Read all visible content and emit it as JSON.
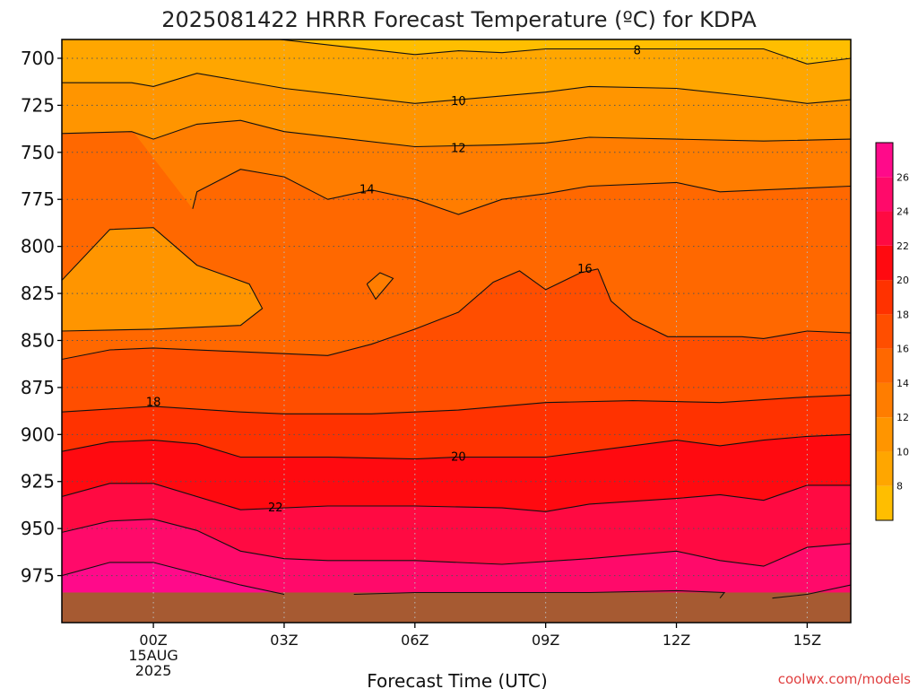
{
  "chart_data": {
    "type": "heatmap",
    "title": "2025081422 HRRR Forecast Temperature (ºC) for KDPA",
    "xlabel": "Forecast Time (UTC)",
    "ylabel": "",
    "watermark": "coolwx.com/models",
    "x_ticks": [
      {
        "hour": 0,
        "lines": [
          "00Z",
          "15AUG",
          "2025"
        ]
      },
      {
        "hour": 3,
        "lines": [
          "03Z"
        ]
      },
      {
        "hour": 6,
        "lines": [
          "06Z"
        ]
      },
      {
        "hour": 9,
        "lines": [
          "09Z"
        ]
      },
      {
        "hour": 12,
        "lines": [
          "12Z"
        ]
      },
      {
        "hour": 15,
        "lines": [
          "15Z"
        ]
      }
    ],
    "xlim_hours": [
      -2.1,
      16.0
    ],
    "y_axis": "pressure (hPa), inverted",
    "y_ticks": [
      700,
      725,
      750,
      775,
      800,
      825,
      850,
      875,
      900,
      925,
      950,
      975
    ],
    "ylim_hpa": [
      690,
      1000
    ],
    "colorbar": {
      "levels": [
        6,
        8,
        10,
        12,
        14,
        16,
        18,
        20,
        22,
        24,
        26,
        28
      ],
      "labels": [
        8,
        10,
        12,
        14,
        16,
        18,
        20,
        22,
        24,
        26
      ],
      "colors": [
        "#ffbe00",
        "#ffa600",
        "#ff9500",
        "#ff7d00",
        "#ff6800",
        "#ff4e00",
        "#ff3200",
        "#ff0a10",
        "#ff0a42",
        "#ff0a6a",
        "#ff0a8a"
      ]
    },
    "contours": [
      {
        "value": 8,
        "label": "8",
        "label_at": [
          11.1,
          696
        ],
        "points": [
          [
            2.9,
            690
          ],
          [
            6,
            698
          ],
          [
            7,
            696
          ],
          [
            8,
            697
          ],
          [
            9,
            695
          ],
          [
            12,
            695
          ],
          [
            14,
            695
          ],
          [
            15,
            703
          ],
          [
            16,
            700
          ]
        ]
      },
      {
        "value": 10,
        "label": "10",
        "label_at": [
          7,
          723
        ],
        "points": [
          [
            -2.1,
            713
          ],
          [
            -0.5,
            713
          ],
          [
            0,
            715
          ],
          [
            1,
            708
          ],
          [
            3,
            716
          ],
          [
            6,
            724
          ],
          [
            8,
            720
          ],
          [
            9,
            718
          ],
          [
            10,
            715
          ],
          [
            12,
            716
          ],
          [
            14,
            721
          ],
          [
            15,
            724
          ],
          [
            16,
            722
          ]
        ]
      },
      {
        "value": 12,
        "label": "12",
        "label_at": [
          7,
          748
        ],
        "points": [
          [
            -2.1,
            740
          ],
          [
            -0.5,
            739
          ],
          [
            0,
            743
          ],
          [
            1,
            735
          ],
          [
            2,
            733
          ],
          [
            3,
            739
          ],
          [
            6,
            747
          ],
          [
            8,
            746
          ],
          [
            9,
            745
          ],
          [
            10,
            742
          ],
          [
            12,
            743
          ],
          [
            14,
            744
          ],
          [
            16,
            743
          ]
        ]
      },
      {
        "value": 14,
        "label": "14",
        "label_at": [
          4.9,
          770
        ],
        "points": [
          [
            -2.1,
            818
          ],
          [
            -1,
            791
          ],
          [
            0,
            790
          ],
          [
            1,
            810
          ],
          [
            2.2,
            820
          ],
          [
            2.5,
            833
          ],
          [
            2,
            842
          ],
          [
            1,
            843
          ],
          [
            0,
            844
          ],
          [
            -2.1,
            845
          ]
        ]
      },
      {
        "value": 14,
        "label": "",
        "label_at": null,
        "points": [
          [
            0.9,
            780
          ],
          [
            1,
            771
          ],
          [
            2,
            759
          ],
          [
            3,
            763
          ],
          [
            4,
            775
          ],
          [
            5,
            770
          ],
          [
            6,
            775
          ],
          [
            7,
            783
          ],
          [
            8,
            775
          ],
          [
            9,
            772
          ],
          [
            10,
            768
          ],
          [
            12,
            766
          ],
          [
            13,
            771
          ],
          [
            14,
            770
          ],
          [
            16,
            768
          ]
        ]
      },
      {
        "value": 16,
        "label": "",
        "label_at": null,
        "points": [
          [
            -2.1,
            860
          ],
          [
            -1,
            855
          ],
          [
            0,
            854
          ],
          [
            2,
            856
          ],
          [
            3,
            857
          ],
          [
            4,
            858
          ],
          [
            5,
            852
          ],
          [
            6,
            844
          ],
          [
            7,
            835
          ],
          [
            7.8,
            819
          ],
          [
            8.4,
            813
          ],
          [
            9,
            823
          ],
          [
            9.8,
            814
          ],
          [
            10.2,
            812
          ]
        ]
      },
      {
        "value": 16,
        "label": "16",
        "label_at": [
          9.9,
          812
        ],
        "points": [
          [
            10.2,
            812
          ],
          [
            10.5,
            829
          ],
          [
            11,
            839
          ],
          [
            11.8,
            848
          ],
          [
            12.5,
            848
          ],
          [
            13.5,
            848
          ],
          [
            14,
            849
          ],
          [
            15,
            845
          ],
          [
            16,
            846
          ]
        ]
      },
      {
        "value": 16,
        "label": "",
        "label_at": null,
        "points": [
          [
            4.9,
            820
          ],
          [
            5.2,
            814
          ],
          [
            5.5,
            817
          ],
          [
            5.1,
            828
          ],
          [
            4.9,
            820
          ]
        ]
      },
      {
        "value": 18,
        "label": "18",
        "label_at": [
          0,
          883
        ],
        "points": [
          [
            -2.1,
            888
          ],
          [
            0,
            885
          ],
          [
            2,
            888
          ],
          [
            3,
            889
          ],
          [
            5,
            889
          ],
          [
            7,
            887
          ],
          [
            9,
            883
          ],
          [
            11,
            882
          ],
          [
            13,
            883
          ],
          [
            15,
            880
          ],
          [
            16,
            879
          ]
        ]
      },
      {
        "value": 20,
        "label": "20",
        "label_at": [
          7,
          912
        ],
        "points": [
          [
            -2.1,
            909
          ],
          [
            -1,
            904
          ],
          [
            0,
            903
          ],
          [
            1,
            905
          ],
          [
            2,
            912
          ],
          [
            4,
            912
          ],
          [
            6,
            913
          ],
          [
            7,
            912
          ],
          [
            9,
            912
          ],
          [
            12,
            903
          ],
          [
            13,
            906
          ],
          [
            14,
            903
          ],
          [
            15,
            901
          ],
          [
            16,
            900
          ]
        ]
      },
      {
        "value": 22,
        "label": "22",
        "label_at": [
          2.8,
          939
        ],
        "points": [
          [
            -2.1,
            933
          ],
          [
            -1,
            926
          ],
          [
            0,
            926
          ],
          [
            2,
            940
          ],
          [
            4,
            938
          ],
          [
            6,
            938
          ],
          [
            8,
            939
          ],
          [
            9,
            941
          ],
          [
            10,
            937
          ],
          [
            12,
            934
          ],
          [
            13,
            932
          ],
          [
            14,
            935
          ],
          [
            15,
            927
          ],
          [
            16,
            927
          ]
        ]
      },
      {
        "value": 24,
        "label": "",
        "label_at": null,
        "points": [
          [
            -2.1,
            952
          ],
          [
            -1,
            946
          ],
          [
            0,
            945
          ],
          [
            1,
            951
          ],
          [
            2,
            962
          ],
          [
            3,
            966
          ],
          [
            4,
            967
          ],
          [
            6,
            967
          ],
          [
            8,
            969
          ],
          [
            10,
            966
          ],
          [
            12,
            962
          ],
          [
            13,
            967
          ],
          [
            14,
            970
          ],
          [
            15,
            960
          ],
          [
            16,
            958
          ]
        ]
      },
      {
        "value": 26,
        "label": "",
        "label_at": null,
        "points": [
          [
            -2.1,
            975
          ],
          [
            -1,
            968
          ],
          [
            0,
            968
          ],
          [
            1,
            974
          ],
          [
            2,
            980
          ],
          [
            3,
            985
          ]
        ]
      },
      {
        "value": 26,
        "label": "",
        "label_at": null,
        "points": [
          [
            4.6,
            985
          ],
          [
            6,
            984
          ],
          [
            8,
            984
          ],
          [
            10,
            984
          ],
          [
            12,
            983
          ],
          [
            13.1,
            984
          ],
          [
            13,
            987
          ]
        ]
      },
      {
        "value": 28,
        "label": "",
        "label_at": null,
        "points": [
          [
            14.2,
            987
          ],
          [
            15,
            985
          ],
          [
            16,
            980
          ]
        ]
      }
    ],
    "surface_terrain_hpa": 984,
    "grid": true,
    "legend_position": "right (colorbar)"
  }
}
